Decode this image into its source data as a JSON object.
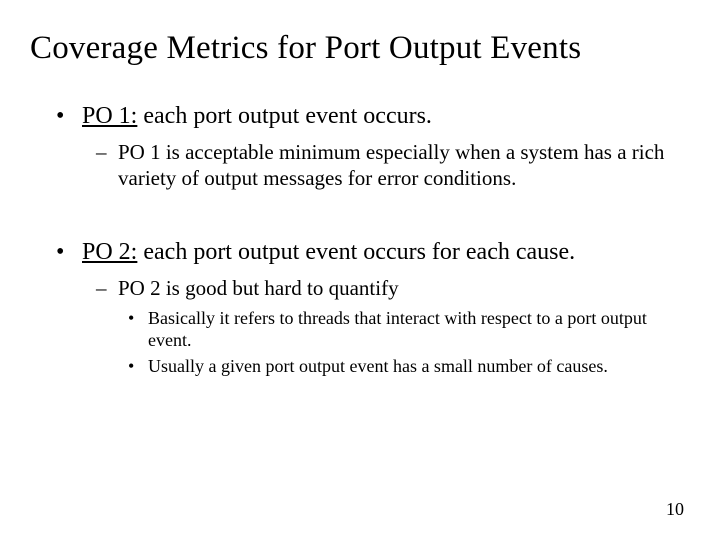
{
  "title": "Coverage Metrics for Port Output Events",
  "bullets": [
    {
      "label": "PO 1:",
      "text": " each port output event occurs.",
      "sub": [
        {
          "text": "PO 1 is acceptable minimum especially when a system has a rich variety of output messages for error conditions."
        }
      ]
    },
    {
      "label": "PO 2:",
      "text": " each port output event occurs for each cause.",
      "sub": [
        {
          "text": "PO 2 is good but hard to quantify",
          "sub": [
            {
              "text": "Basically it refers to threads that interact with respect to a port output event."
            },
            {
              "text": "Usually a given port output event has a small number of causes."
            }
          ]
        }
      ]
    }
  ],
  "pageNumber": "10"
}
